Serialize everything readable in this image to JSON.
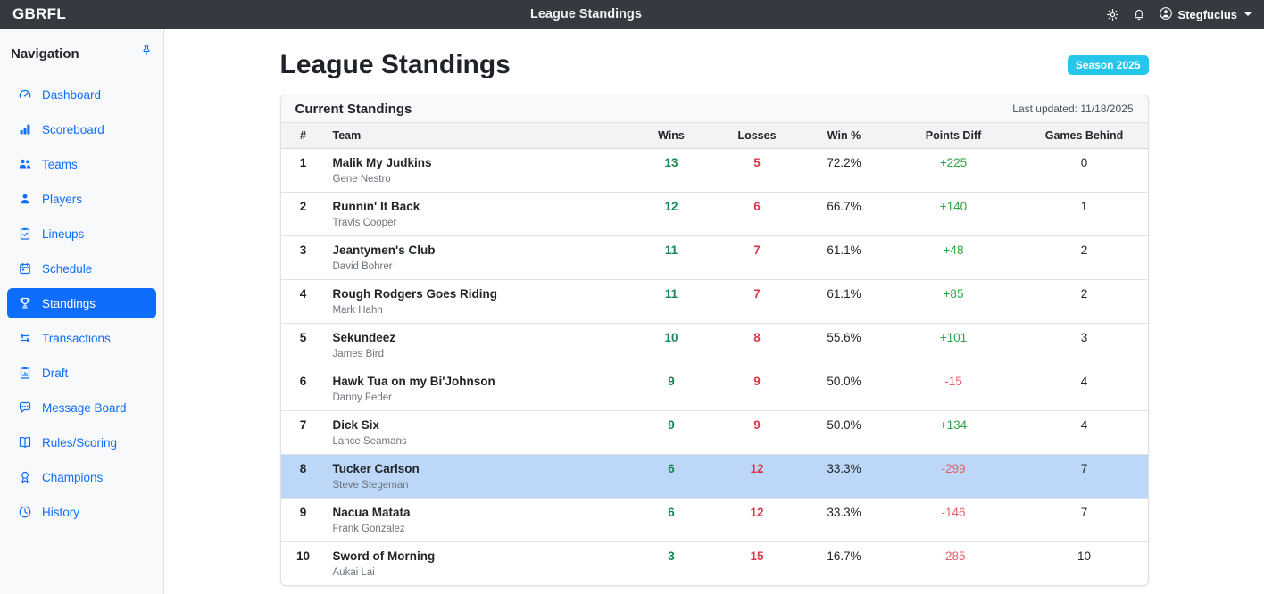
{
  "topbar": {
    "brand": "GBRFL",
    "title": "League Standings",
    "user_name": "Stegfucius"
  },
  "sidebar": {
    "header": "Navigation",
    "items": [
      {
        "label": "Dashboard",
        "icon": "speedometer",
        "active": false
      },
      {
        "label": "Scoreboard",
        "icon": "bar-chart",
        "active": false
      },
      {
        "label": "Teams",
        "icon": "people",
        "active": false
      },
      {
        "label": "Players",
        "icon": "person",
        "active": false
      },
      {
        "label": "Lineups",
        "icon": "clipboard-check",
        "active": false
      },
      {
        "label": "Schedule",
        "icon": "calendar",
        "active": false
      },
      {
        "label": "Standings",
        "icon": "trophy",
        "active": true
      },
      {
        "label": "Transactions",
        "icon": "arrows-left-right",
        "active": false
      },
      {
        "label": "Draft",
        "icon": "clipboard-data",
        "active": false
      },
      {
        "label": "Message Board",
        "icon": "chat-dots",
        "active": false
      },
      {
        "label": "Rules/Scoring",
        "icon": "book",
        "active": false
      },
      {
        "label": "Champions",
        "icon": "award",
        "active": false
      },
      {
        "label": "History",
        "icon": "clock",
        "active": false
      }
    ]
  },
  "page": {
    "title": "League Standings",
    "season_badge": "Season 2025"
  },
  "standings_card": {
    "title": "Current Standings",
    "last_updated": "Last updated: 11/18/2025",
    "columns": [
      "#",
      "Team",
      "Wins",
      "Losses",
      "Win %",
      "Points Diff",
      "Games Behind"
    ],
    "rows": [
      {
        "rank": 1,
        "team": "Malik My Judkins",
        "owner": "Gene Nestro",
        "wins": 13,
        "losses": 5,
        "win_pct": "72.2%",
        "points_diff": "+225",
        "games_behind": 0,
        "highlighted": false
      },
      {
        "rank": 2,
        "team": "Runnin' It Back",
        "owner": "Travis Cooper",
        "wins": 12,
        "losses": 6,
        "win_pct": "66.7%",
        "points_diff": "+140",
        "games_behind": 1,
        "highlighted": false
      },
      {
        "rank": 3,
        "team": "Jeantymen's Club",
        "owner": "David Bohrer",
        "wins": 11,
        "losses": 7,
        "win_pct": "61.1%",
        "points_diff": "+48",
        "games_behind": 2,
        "highlighted": false
      },
      {
        "rank": 4,
        "team": "Rough Rodgers Goes Riding",
        "owner": "Mark Hahn",
        "wins": 11,
        "losses": 7,
        "win_pct": "61.1%",
        "points_diff": "+85",
        "games_behind": 2,
        "highlighted": false
      },
      {
        "rank": 5,
        "team": "Sekundeez",
        "owner": "James Bird",
        "wins": 10,
        "losses": 8,
        "win_pct": "55.6%",
        "points_diff": "+101",
        "games_behind": 3,
        "highlighted": false
      },
      {
        "rank": 6,
        "team": "Hawk Tua on my Bi'Johnson",
        "owner": "Danny Feder",
        "wins": 9,
        "losses": 9,
        "win_pct": "50.0%",
        "points_diff": "-15",
        "games_behind": 4,
        "highlighted": false
      },
      {
        "rank": 7,
        "team": "Dick Six",
        "owner": "Lance Seamans",
        "wins": 9,
        "losses": 9,
        "win_pct": "50.0%",
        "points_diff": "+134",
        "games_behind": 4,
        "highlighted": false
      },
      {
        "rank": 8,
        "team": "Tucker Carlson",
        "owner": "Steve Stegeman",
        "wins": 6,
        "losses": 12,
        "win_pct": "33.3%",
        "points_diff": "-299",
        "games_behind": 7,
        "highlighted": true
      },
      {
        "rank": 9,
        "team": "Nacua Matata",
        "owner": "Frank Gonzalez",
        "wins": 6,
        "losses": 12,
        "win_pct": "33.3%",
        "points_diff": "-146",
        "games_behind": 7,
        "highlighted": false
      },
      {
        "rank": 10,
        "team": "Sword of Morning",
        "owner": "Aukai Lai",
        "wins": 3,
        "losses": 15,
        "win_pct": "16.7%",
        "points_diff": "-285",
        "games_behind": 10,
        "highlighted": false
      }
    ]
  },
  "colors": {
    "topbar_bg": "#343a40",
    "accent_blue": "#0d6efd",
    "badge_cyan": "#26c6ea",
    "wins_green": "#198754",
    "losses_red": "#dc3545",
    "diff_positive": "#28a745",
    "diff_negative": "#e4606d",
    "highlight_row_bg": "#bcd7f8"
  }
}
